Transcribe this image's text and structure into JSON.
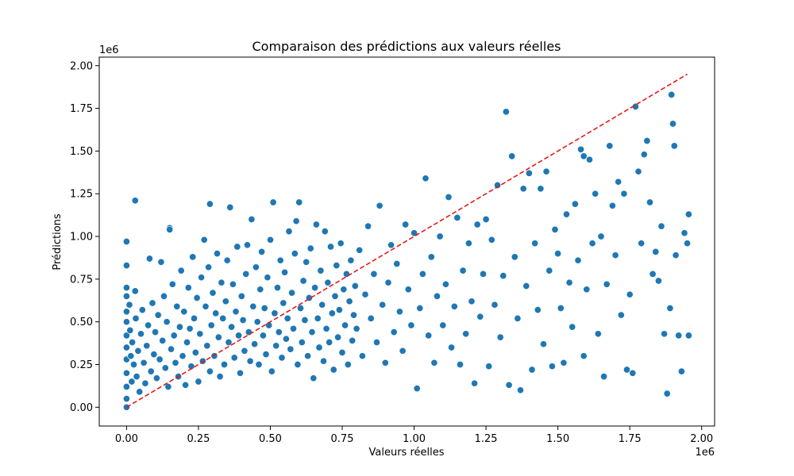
{
  "chart_data": {
    "type": "scatter",
    "title": "Comparaison des prédictions aux valeurs réelles",
    "xlabel": "Valeurs réelles",
    "ylabel": "Prédictions",
    "x_offset_label": "1e6",
    "y_offset_label": "1e6",
    "xlim": [
      -95000,
      2045000
    ],
    "ylim": [
      -110000,
      2050000
    ],
    "x_ticks": [
      0,
      250000,
      500000,
      750000,
      1000000,
      1250000,
      1500000,
      1750000,
      2000000
    ],
    "x_tick_labels": [
      "0.00",
      "0.25",
      "0.50",
      "0.75",
      "1.00",
      "1.25",
      "1.50",
      "1.75",
      "2.00"
    ],
    "y_ticks": [
      0,
      250000,
      500000,
      750000,
      1000000,
      1250000,
      1500000,
      1750000,
      2000000
    ],
    "y_tick_labels": [
      "0.00",
      "0.25",
      "0.50",
      "0.75",
      "1.00",
      "1.25",
      "1.50",
      "1.75",
      "2.00"
    ],
    "grid": false,
    "point_color": "#1f77b4",
    "reference_line": {
      "x": [
        0,
        1950000
      ],
      "y": [
        0,
        1950000
      ],
      "color": "#e41a1c",
      "style": "dashed"
    },
    "points": [
      [
        0,
        970000
      ],
      [
        0,
        830000
      ],
      [
        0,
        700000
      ],
      [
        0,
        650000
      ],
      [
        0,
        560000
      ],
      [
        0,
        500000
      ],
      [
        0,
        420000
      ],
      [
        0,
        350000
      ],
      [
        0,
        280000
      ],
      [
        0,
        200000
      ],
      [
        0,
        120000
      ],
      [
        0,
        50000
      ],
      [
        0,
        0
      ],
      [
        10000,
        600000
      ],
      [
        12000,
        450000
      ],
      [
        15000,
        300000
      ],
      [
        18000,
        150000
      ],
      [
        20000,
        380000
      ],
      [
        25000,
        250000
      ],
      [
        30000,
        1210000
      ],
      [
        30000,
        680000
      ],
      [
        32000,
        520000
      ],
      [
        35000,
        180000
      ],
      [
        40000,
        330000
      ],
      [
        45000,
        90000
      ],
      [
        50000,
        430000
      ],
      [
        55000,
        570000
      ],
      [
        60000,
        260000
      ],
      [
        65000,
        140000
      ],
      [
        70000,
        360000
      ],
      [
        75000,
        480000
      ],
      [
        80000,
        870000
      ],
      [
        85000,
        210000
      ],
      [
        90000,
        610000
      ],
      [
        95000,
        310000
      ],
      [
        100000,
        440000
      ],
      [
        105000,
        170000
      ],
      [
        110000,
        540000
      ],
      [
        115000,
        280000
      ],
      [
        120000,
        850000
      ],
      [
        125000,
        390000
      ],
      [
        130000,
        650000
      ],
      [
        135000,
        230000
      ],
      [
        140000,
        500000
      ],
      [
        145000,
        120000
      ],
      [
        150000,
        1050000
      ],
      [
        150000,
        1040000
      ],
      [
        155000,
        340000
      ],
      [
        160000,
        720000
      ],
      [
        165000,
        420000
      ],
      [
        170000,
        260000
      ],
      [
        175000,
        590000
      ],
      [
        180000,
        180000
      ],
      [
        185000,
        470000
      ],
      [
        190000,
        800000
      ],
      [
        195000,
        300000
      ],
      [
        200000,
        560000
      ],
      [
        205000,
        130000
      ],
      [
        210000,
        380000
      ],
      [
        215000,
        700000
      ],
      [
        220000,
        460000
      ],
      [
        225000,
        240000
      ],
      [
        230000,
        880000
      ],
      [
        235000,
        520000
      ],
      [
        240000,
        320000
      ],
      [
        245000,
        640000
      ],
      [
        250000,
        150000
      ],
      [
        255000,
        430000
      ],
      [
        260000,
        760000
      ],
      [
        265000,
        270000
      ],
      [
        270000,
        980000
      ],
      [
        275000,
        590000
      ],
      [
        280000,
        360000
      ],
      [
        285000,
        820000
      ],
      [
        290000,
        1190000
      ],
      [
        290000,
        210000
      ],
      [
        295000,
        480000
      ],
      [
        300000,
        670000
      ],
      [
        305000,
        300000
      ],
      [
        310000,
        550000
      ],
      [
        315000,
        900000
      ],
      [
        320000,
        410000
      ],
      [
        325000,
        180000
      ],
      [
        330000,
        730000
      ],
      [
        335000,
        520000
      ],
      [
        340000,
        250000
      ],
      [
        345000,
        620000
      ],
      [
        350000,
        860000
      ],
      [
        355000,
        380000
      ],
      [
        360000,
        1170000
      ],
      [
        365000,
        470000
      ],
      [
        370000,
        720000
      ],
      [
        375000,
        290000
      ],
      [
        380000,
        560000
      ],
      [
        385000,
        940000
      ],
      [
        390000,
        420000
      ],
      [
        395000,
        200000
      ],
      [
        400000,
        650000
      ],
      [
        405000,
        510000
      ],
      [
        410000,
        330000
      ],
      [
        415000,
        780000
      ],
      [
        420000,
        950000
      ],
      [
        425000,
        440000
      ],
      [
        430000,
        270000
      ],
      [
        435000,
        1100000
      ],
      [
        440000,
        590000
      ],
      [
        445000,
        370000
      ],
      [
        450000,
        820000
      ],
      [
        455000,
        500000
      ],
      [
        460000,
        250000
      ],
      [
        465000,
        690000
      ],
      [
        470000,
        910000
      ],
      [
        475000,
        420000
      ],
      [
        480000,
        580000
      ],
      [
        485000,
        310000
      ],
      [
        490000,
        760000
      ],
      [
        495000,
        480000
      ],
      [
        500000,
        980000
      ],
      [
        505000,
        210000
      ],
      [
        510000,
        1200000
      ],
      [
        515000,
        550000
      ],
      [
        520000,
        360000
      ],
      [
        525000,
        700000
      ],
      [
        530000,
        440000
      ],
      [
        535000,
        860000
      ],
      [
        540000,
        290000
      ],
      [
        545000,
        610000
      ],
      [
        550000,
        790000
      ],
      [
        555000,
        400000
      ],
      [
        560000,
        520000
      ],
      [
        565000,
        1030000
      ],
      [
        570000,
        340000
      ],
      [
        575000,
        670000
      ],
      [
        580000,
        460000
      ],
      [
        585000,
        900000
      ],
      [
        590000,
        1090000
      ],
      [
        595000,
        250000
      ],
      [
        600000,
        1200000
      ],
      [
        605000,
        580000
      ],
      [
        610000,
        380000
      ],
      [
        615000,
        740000
      ],
      [
        620000,
        510000
      ],
      [
        625000,
        850000
      ],
      [
        630000,
        300000
      ],
      [
        635000,
        640000
      ],
      [
        640000,
        930000
      ],
      [
        645000,
        440000
      ],
      [
        650000,
        170000
      ],
      [
        655000,
        700000
      ],
      [
        660000,
        1070000
      ],
      [
        665000,
        520000
      ],
      [
        670000,
        350000
      ],
      [
        675000,
        800000
      ],
      [
        680000,
        600000
      ],
      [
        685000,
        270000
      ],
      [
        690000,
        1030000
      ],
      [
        695000,
        460000
      ],
      [
        700000,
        730000
      ],
      [
        705000,
        380000
      ],
      [
        710000,
        940000
      ],
      [
        715000,
        550000
      ],
      [
        720000,
        220000
      ],
      [
        725000,
        650000
      ],
      [
        730000,
        830000
      ],
      [
        735000,
        410000
      ],
      [
        740000,
        570000
      ],
      [
        745000,
        960000
      ],
      [
        750000,
        320000
      ],
      [
        755000,
        690000
      ],
      [
        760000,
        480000
      ],
      [
        765000,
        780000
      ],
      [
        770000,
        250000
      ],
      [
        775000,
        620000
      ],
      [
        780000,
        860000
      ],
      [
        785000,
        390000
      ],
      [
        790000,
        540000
      ],
      [
        795000,
        710000
      ],
      [
        800000,
        460000
      ],
      [
        810000,
        920000
      ],
      [
        820000,
        300000
      ],
      [
        830000,
        660000
      ],
      [
        840000,
        1060000
      ],
      [
        850000,
        520000
      ],
      [
        860000,
        780000
      ],
      [
        870000,
        380000
      ],
      [
        880000,
        1180000
      ],
      [
        890000,
        600000
      ],
      [
        900000,
        260000
      ],
      [
        910000,
        730000
      ],
      [
        920000,
        950000
      ],
      [
        930000,
        440000
      ],
      [
        940000,
        840000
      ],
      [
        950000,
        560000
      ],
      [
        960000,
        330000
      ],
      [
        970000,
        1070000
      ],
      [
        980000,
        690000
      ],
      [
        990000,
        480000
      ],
      [
        1000000,
        1020000
      ],
      [
        1010000,
        110000
      ],
      [
        1020000,
        580000
      ],
      [
        1030000,
        780000
      ],
      [
        1040000,
        1340000
      ],
      [
        1050000,
        420000
      ],
      [
        1060000,
        880000
      ],
      [
        1070000,
        260000
      ],
      [
        1080000,
        650000
      ],
      [
        1090000,
        1000000
      ],
      [
        1100000,
        480000
      ],
      [
        1110000,
        720000
      ],
      [
        1120000,
        1230000
      ],
      [
        1130000,
        350000
      ],
      [
        1140000,
        590000
      ],
      [
        1150000,
        1110000
      ],
      [
        1160000,
        250000
      ],
      [
        1170000,
        800000
      ],
      [
        1180000,
        430000
      ],
      [
        1190000,
        960000
      ],
      [
        1200000,
        620000
      ],
      [
        1210000,
        140000
      ],
      [
        1220000,
        1070000
      ],
      [
        1230000,
        530000
      ],
      [
        1240000,
        780000
      ],
      [
        1250000,
        1100000
      ],
      [
        1260000,
        240000
      ],
      [
        1270000,
        980000
      ],
      [
        1280000,
        600000
      ],
      [
        1290000,
        1300000
      ],
      [
        1300000,
        410000
      ],
      [
        1310000,
        770000
      ],
      [
        1320000,
        1730000
      ],
      [
        1330000,
        130000
      ],
      [
        1340000,
        1470000
      ],
      [
        1350000,
        880000
      ],
      [
        1360000,
        520000
      ],
      [
        1370000,
        100000
      ],
      [
        1380000,
        1280000
      ],
      [
        1390000,
        710000
      ],
      [
        1400000,
        1370000
      ],
      [
        1410000,
        220000
      ],
      [
        1420000,
        960000
      ],
      [
        1430000,
        570000
      ],
      [
        1440000,
        1280000
      ],
      [
        1450000,
        370000
      ],
      [
        1460000,
        1380000
      ],
      [
        1470000,
        800000
      ],
      [
        1480000,
        240000
      ],
      [
        1490000,
        1040000
      ],
      [
        1500000,
        900000
      ],
      [
        1510000,
        580000
      ],
      [
        1520000,
        260000
      ],
      [
        1530000,
        1130000
      ],
      [
        1540000,
        730000
      ],
      [
        1550000,
        470000
      ],
      [
        1560000,
        1190000
      ],
      [
        1570000,
        860000
      ],
      [
        1580000,
        1510000
      ],
      [
        1590000,
        1470000
      ],
      [
        1590000,
        300000
      ],
      [
        1600000,
        690000
      ],
      [
        1610000,
        1450000
      ],
      [
        1620000,
        960000
      ],
      [
        1630000,
        1250000
      ],
      [
        1640000,
        430000
      ],
      [
        1650000,
        1000000
      ],
      [
        1660000,
        180000
      ],
      [
        1670000,
        720000
      ],
      [
        1680000,
        1530000
      ],
      [
        1690000,
        1180000
      ],
      [
        1700000,
        890000
      ],
      [
        1710000,
        1320000
      ],
      [
        1720000,
        540000
      ],
      [
        1730000,
        1250000
      ],
      [
        1740000,
        220000
      ],
      [
        1750000,
        660000
      ],
      [
        1760000,
        200000
      ],
      [
        1770000,
        1760000
      ],
      [
        1780000,
        1380000
      ],
      [
        1790000,
        960000
      ],
      [
        1800000,
        1480000
      ],
      [
        1810000,
        1560000
      ],
      [
        1820000,
        1200000
      ],
      [
        1830000,
        780000
      ],
      [
        1840000,
        910000
      ],
      [
        1850000,
        740000
      ],
      [
        1860000,
        1060000
      ],
      [
        1870000,
        430000
      ],
      [
        1880000,
        80000
      ],
      [
        1890000,
        580000
      ],
      [
        1895000,
        1830000
      ],
      [
        1900000,
        1660000
      ],
      [
        1905000,
        1530000
      ],
      [
        1910000,
        890000
      ],
      [
        1920000,
        420000
      ],
      [
        1930000,
        210000
      ],
      [
        1940000,
        1020000
      ],
      [
        1950000,
        960000
      ],
      [
        1955000,
        1130000
      ],
      [
        1955000,
        420000
      ]
    ]
  }
}
